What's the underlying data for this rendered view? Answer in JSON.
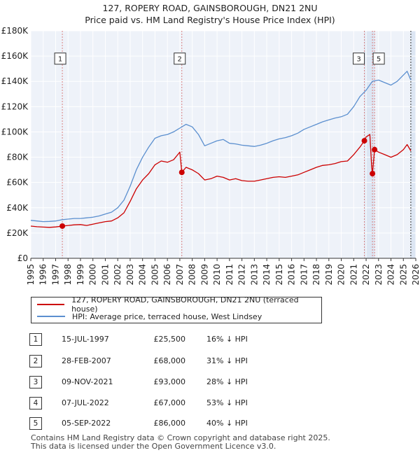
{
  "chart_data": {
    "type": "line",
    "title": [
      "127, ROPERY ROAD, GAINSBOROUGH, DN21 2NU",
      "Price paid vs. HM Land Registry's House Price Index (HPI)"
    ],
    "xlim": [
      1995,
      2026
    ],
    "ylim": [
      0,
      180000
    ],
    "x_ticks": [
      "1995",
      "1996",
      "1997",
      "1998",
      "1999",
      "2000",
      "2001",
      "2002",
      "2003",
      "2004",
      "2005",
      "2006",
      "2007",
      "2008",
      "2009",
      "2010",
      "2011",
      "2012",
      "2013",
      "2014",
      "2015",
      "2016",
      "2017",
      "2018",
      "2019",
      "2020",
      "2021",
      "2022",
      "2023",
      "2024",
      "2025",
      "2026"
    ],
    "y_ticks": [
      {
        "value": 0,
        "label": "£0"
      },
      {
        "value": 20000,
        "label": "£20K"
      },
      {
        "value": 40000,
        "label": "£40K"
      },
      {
        "value": 60000,
        "label": "£60K"
      },
      {
        "value": 80000,
        "label": "£80K"
      },
      {
        "value": 100000,
        "label": "£100K"
      },
      {
        "value": 120000,
        "label": "£120K"
      },
      {
        "value": 140000,
        "label": "£140K"
      },
      {
        "value": 160000,
        "label": "£160K"
      },
      {
        "value": 180000,
        "label": "£180K"
      }
    ],
    "series": [
      {
        "name": "127, ROPERY ROAD, GAINSBOROUGH, DN21 2NU (terraced house)",
        "color": "#cc0000",
        "points": [
          [
            1995.0,
            25500
          ],
          [
            1995.5,
            25000
          ],
          [
            1996.0,
            24700
          ],
          [
            1996.5,
            24500
          ],
          [
            1997.0,
            24800
          ],
          [
            1997.54,
            25500
          ],
          [
            1998.0,
            26000
          ],
          [
            1998.5,
            26500
          ],
          [
            1999.0,
            26700
          ],
          [
            1999.5,
            26000
          ],
          [
            2000.0,
            27000
          ],
          [
            2000.5,
            28000
          ],
          [
            2001.0,
            29000
          ],
          [
            2001.5,
            29500
          ],
          [
            2002.0,
            32000
          ],
          [
            2002.5,
            36000
          ],
          [
            2003.0,
            45000
          ],
          [
            2003.5,
            55000
          ],
          [
            2004.0,
            62000
          ],
          [
            2004.5,
            67000
          ],
          [
            2005.0,
            74000
          ],
          [
            2005.5,
            77000
          ],
          [
            2006.0,
            76000
          ],
          [
            2006.5,
            78000
          ],
          [
            2007.0,
            84000
          ],
          [
            2007.16,
            68000
          ],
          [
            2007.5,
            72000
          ],
          [
            2008.0,
            70000
          ],
          [
            2008.5,
            67000
          ],
          [
            2009.0,
            62000
          ],
          [
            2009.5,
            63000
          ],
          [
            2010.0,
            65000
          ],
          [
            2010.5,
            64000
          ],
          [
            2011.0,
            62000
          ],
          [
            2011.5,
            63000
          ],
          [
            2012.0,
            61500
          ],
          [
            2012.5,
            61000
          ],
          [
            2013.0,
            61000
          ],
          [
            2013.5,
            62000
          ],
          [
            2014.0,
            63000
          ],
          [
            2014.5,
            64000
          ],
          [
            2015.0,
            64500
          ],
          [
            2015.5,
            64000
          ],
          [
            2016.0,
            65000
          ],
          [
            2016.5,
            66000
          ],
          [
            2017.0,
            68000
          ],
          [
            2017.5,
            70000
          ],
          [
            2018.0,
            72000
          ],
          [
            2018.5,
            73500
          ],
          [
            2019.0,
            74000
          ],
          [
            2019.5,
            75000
          ],
          [
            2020.0,
            76500
          ],
          [
            2020.5,
            77000
          ],
          [
            2021.0,
            82000
          ],
          [
            2021.5,
            88000
          ],
          [
            2021.86,
            93000
          ],
          [
            2022.0,
            96000
          ],
          [
            2022.3,
            98000
          ],
          [
            2022.45,
            72000
          ],
          [
            2022.51,
            67000
          ],
          [
            2022.68,
            86000
          ],
          [
            2023.0,
            84000
          ],
          [
            2023.5,
            82000
          ],
          [
            2024.0,
            80000
          ],
          [
            2024.5,
            82000
          ],
          [
            2025.0,
            86000
          ],
          [
            2025.3,
            90000
          ],
          [
            2025.6,
            85000
          ]
        ]
      },
      {
        "name": "HPI: Average price, terraced house, West Lindsey",
        "color": "#5b8fcf",
        "points": [
          [
            1995.0,
            30000
          ],
          [
            1995.5,
            29500
          ],
          [
            1996.0,
            29000
          ],
          [
            1996.5,
            29200
          ],
          [
            1997.0,
            29500
          ],
          [
            1997.5,
            30500
          ],
          [
            1998.0,
            31000
          ],
          [
            1998.5,
            31500
          ],
          [
            1999.0,
            31500
          ],
          [
            1999.5,
            32000
          ],
          [
            2000.0,
            32500
          ],
          [
            2000.5,
            33500
          ],
          [
            2001.0,
            35000
          ],
          [
            2001.5,
            36500
          ],
          [
            2002.0,
            40000
          ],
          [
            2002.5,
            46000
          ],
          [
            2003.0,
            57000
          ],
          [
            2003.5,
            70000
          ],
          [
            2004.0,
            80000
          ],
          [
            2004.5,
            88000
          ],
          [
            2005.0,
            95000
          ],
          [
            2005.5,
            97000
          ],
          [
            2006.0,
            98000
          ],
          [
            2006.5,
            100000
          ],
          [
            2007.0,
            103000
          ],
          [
            2007.5,
            106000
          ],
          [
            2008.0,
            104000
          ],
          [
            2008.5,
            98000
          ],
          [
            2009.0,
            89000
          ],
          [
            2009.5,
            91000
          ],
          [
            2010.0,
            93000
          ],
          [
            2010.5,
            94000
          ],
          [
            2011.0,
            91000
          ],
          [
            2011.5,
            90500
          ],
          [
            2012.0,
            89500
          ],
          [
            2012.5,
            89000
          ],
          [
            2013.0,
            88500
          ],
          [
            2013.5,
            89500
          ],
          [
            2014.0,
            91000
          ],
          [
            2014.5,
            93000
          ],
          [
            2015.0,
            94500
          ],
          [
            2015.5,
            95500
          ],
          [
            2016.0,
            97000
          ],
          [
            2016.5,
            99000
          ],
          [
            2017.0,
            102000
          ],
          [
            2017.5,
            104000
          ],
          [
            2018.0,
            106000
          ],
          [
            2018.5,
            108000
          ],
          [
            2019.0,
            109500
          ],
          [
            2019.5,
            111000
          ],
          [
            2020.0,
            112000
          ],
          [
            2020.5,
            114000
          ],
          [
            2021.0,
            120000
          ],
          [
            2021.5,
            128000
          ],
          [
            2022.0,
            133000
          ],
          [
            2022.5,
            140000
          ],
          [
            2023.0,
            141000
          ],
          [
            2023.5,
            139000
          ],
          [
            2024.0,
            137000
          ],
          [
            2024.5,
            140000
          ],
          [
            2025.0,
            145000
          ],
          [
            2025.3,
            148000
          ],
          [
            2025.6,
            141000
          ]
        ]
      }
    ],
    "sale_markers": [
      {
        "n": "1",
        "x": 1997.54,
        "y": 25500
      },
      {
        "n": "2",
        "x": 2007.16,
        "y": 68000
      },
      {
        "n": "3",
        "x": 2021.86,
        "y": 93000
      },
      {
        "n": "4",
        "x": 2022.51,
        "y": 67000
      },
      {
        "n": "5",
        "x": 2022.68,
        "y": 86000
      }
    ],
    "box_label_value": 158000,
    "legend_placement": "below"
  },
  "legend": {
    "property_label": "127, ROPERY ROAD, GAINSBOROUGH, DN21 2NU (terraced house)",
    "hpi_label": "HPI: Average price, terraced house, West Lindsey"
  },
  "sales": [
    {
      "n": "1",
      "date": "15-JUL-1997",
      "price": "£25,500",
      "hpi": "16% ↓ HPI"
    },
    {
      "n": "2",
      "date": "28-FEB-2007",
      "price": "£68,000",
      "hpi": "31% ↓ HPI"
    },
    {
      "n": "3",
      "date": "09-NOV-2021",
      "price": "£93,000",
      "hpi": "28% ↓ HPI"
    },
    {
      "n": "4",
      "date": "07-JUL-2022",
      "price": "£67,000",
      "hpi": "53% ↓ HPI"
    },
    {
      "n": "5",
      "date": "05-SEP-2022",
      "price": "£86,000",
      "hpi": "40% ↓ HPI"
    }
  ],
  "footer": {
    "line1": "Contains HM Land Registry data © Crown copyright and database right 2025.",
    "line2": "This data is licensed under the Open Government Licence v3.0."
  },
  "colors": {
    "property": "#cc0000",
    "hpi": "#5b8fcf",
    "plot_bg": "#eef2f9",
    "shade": "#dde6f3",
    "grid": "#ffffff",
    "vline": "#d98080"
  }
}
